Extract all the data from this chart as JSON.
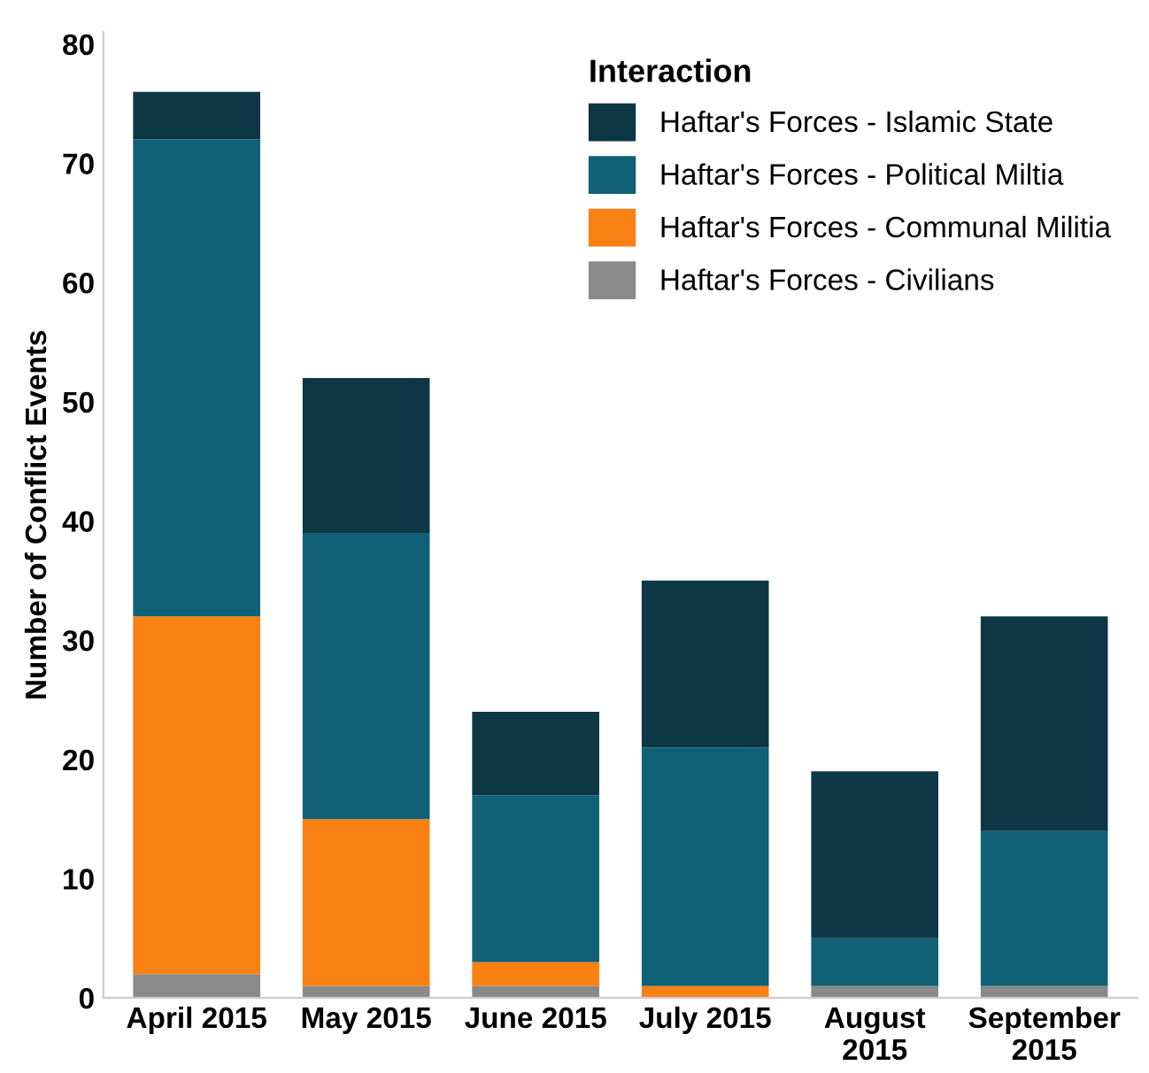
{
  "chart_data": {
    "type": "bar",
    "stacked": true,
    "ylabel": "Number of Conflict Events",
    "legend_title": "Interaction",
    "legend": "top right",
    "categories": [
      "April 2015",
      "May 2015",
      "June 2015",
      "July 2015",
      "August\n2015",
      "September\n2015"
    ],
    "series": [
      {
        "name": "Haftar's Forces - Civilians",
        "color": "#8a8a8a",
        "values": [
          2,
          1,
          1,
          0,
          1,
          1
        ]
      },
      {
        "name": "Haftar's Forces - Communal Militia",
        "color": "#f98013",
        "values": [
          30,
          14,
          2,
          1,
          0,
          0
        ]
      },
      {
        "name": "Haftar's Forces - Political Miltia",
        "color": "#106077",
        "values": [
          40,
          24,
          14,
          20,
          4,
          13
        ]
      },
      {
        "name": "Haftar's Forces - Islamic State",
        "color": "#0e3746",
        "values": [
          4,
          13,
          7,
          14,
          14,
          18
        ]
      }
    ],
    "ylim": [
      0,
      81
    ],
    "yticks": [
      0,
      10,
      20,
      30,
      40,
      50,
      60,
      70,
      80
    ],
    "grid": false
  }
}
